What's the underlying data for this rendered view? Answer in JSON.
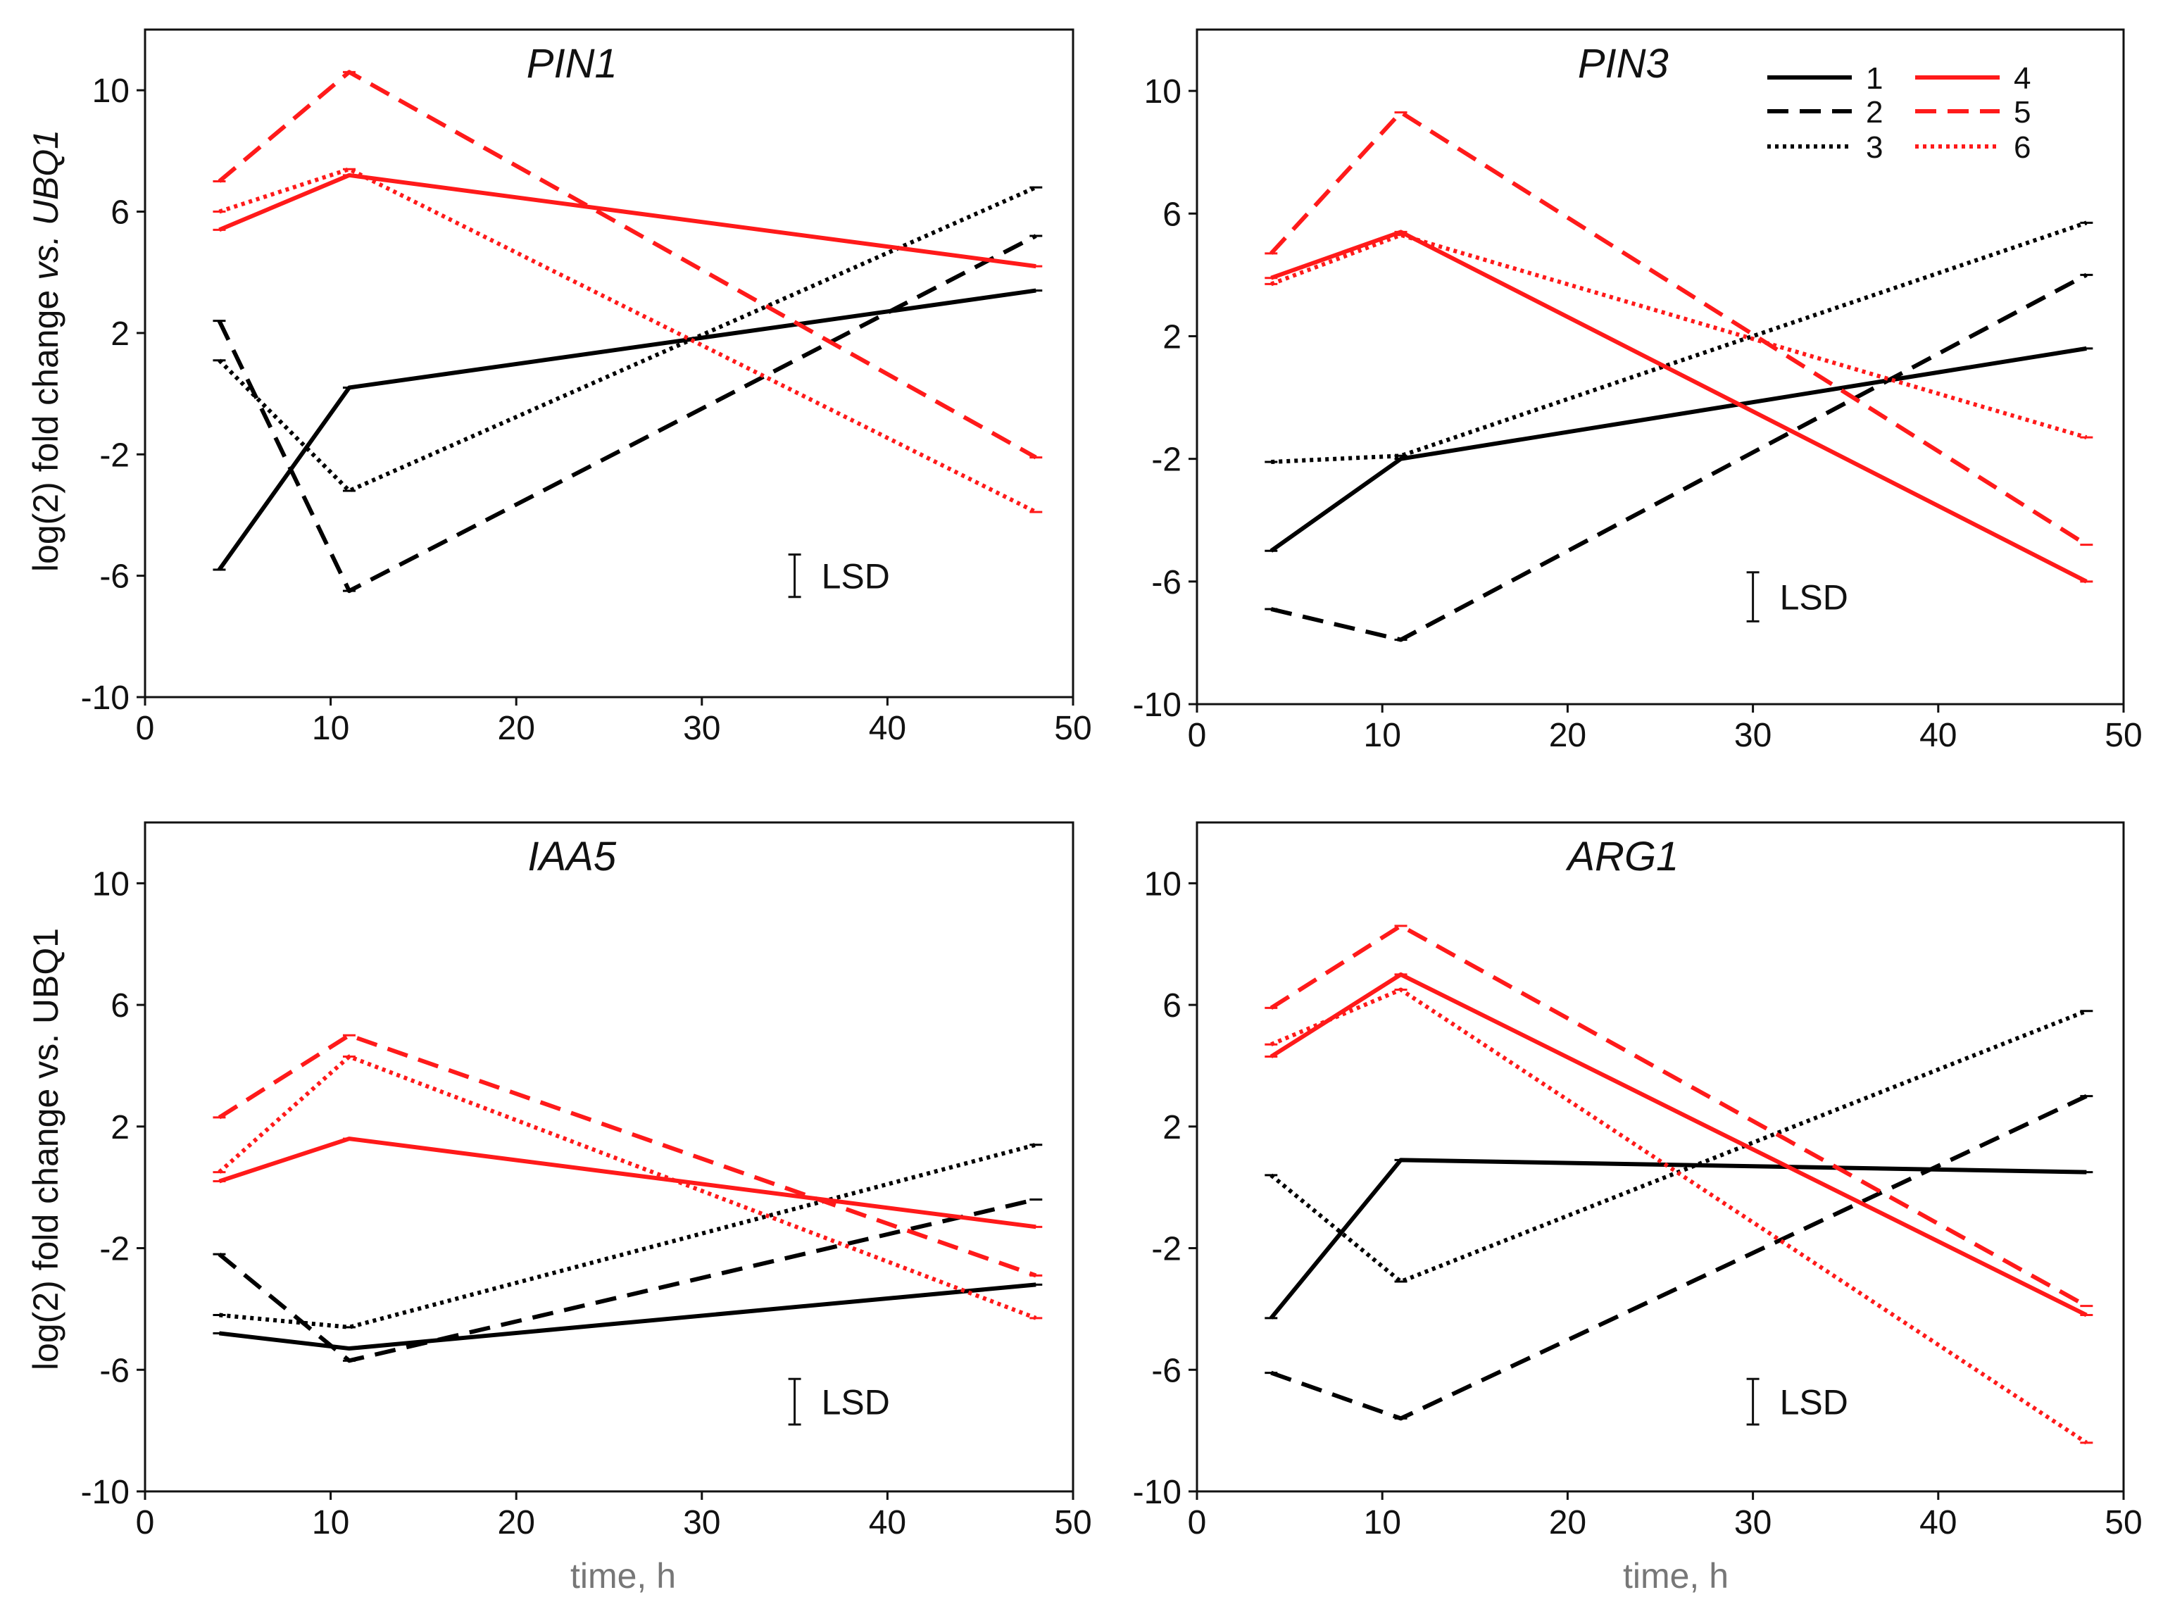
{
  "colors": {
    "control": "#000000",
    "treatment": "#ff1a1a",
    "axis": "#111111",
    "xlabel": "#777777"
  },
  "ylabel_panels": {
    "top": {
      "pre": "log(2) fold change ",
      "vs": "vs.",
      "mid": " ",
      "gene": "UBQ1"
    },
    "bottom": {
      "full": "log(2) fold change vs. UBQ1"
    }
  },
  "xlabel": "time, h",
  "lsd_label": "LSD",
  "legend": {
    "entries": [
      {
        "label": "1",
        "color": "control",
        "style": "solid"
      },
      {
        "label": "2",
        "color": "control",
        "style": "dashed"
      },
      {
        "label": "3",
        "color": "control",
        "style": "dotted"
      },
      {
        "label": "4",
        "color": "treatment",
        "style": "solid"
      },
      {
        "label": "5",
        "color": "treatment",
        "style": "dashed"
      },
      {
        "label": "6",
        "color": "treatment",
        "style": "dotted"
      }
    ]
  },
  "chart_data": [
    {
      "type": "line",
      "title": "PIN1",
      "xlabel": "",
      "ylabel": "log(2) fold change vs. UBQ1",
      "xlim": [
        0,
        50
      ],
      "ylim": [
        -10,
        12
      ],
      "xticks": [
        "0",
        "10",
        "20",
        "30",
        "40",
        "50"
      ],
      "yticks": [
        "-10",
        "-6",
        "-2",
        "2",
        "6",
        "10"
      ],
      "x": [
        4,
        11,
        48
      ],
      "series": [
        {
          "name": "1",
          "values": [
            -5.8,
            0.2,
            3.4
          ]
        },
        {
          "name": "2",
          "values": [
            2.4,
            -6.5,
            5.2
          ]
        },
        {
          "name": "3",
          "values": [
            1.1,
            -3.2,
            6.8
          ]
        },
        {
          "name": "4",
          "values": [
            5.4,
            7.2,
            4.2
          ]
        },
        {
          "name": "5",
          "values": [
            7.0,
            10.6,
            -2.1
          ]
        },
        {
          "name": "6",
          "values": [
            6.0,
            7.4,
            -3.9
          ]
        }
      ],
      "lsd": {
        "x": 35,
        "low": -6.7,
        "high": -5.3
      }
    },
    {
      "type": "line",
      "title": "PIN3",
      "xlabel": "",
      "ylabel": "",
      "xlim": [
        0,
        50
      ],
      "ylim": [
        -10,
        12
      ],
      "xticks": [
        "0",
        "10",
        "20",
        "30",
        "40",
        "50"
      ],
      "yticks": [
        "-10",
        "-6",
        "-2",
        "2",
        "6",
        "10"
      ],
      "x": [
        4,
        11,
        48
      ],
      "series": [
        {
          "name": "1",
          "values": [
            -5.0,
            -2.0,
            1.6
          ]
        },
        {
          "name": "2",
          "values": [
            -6.9,
            -7.9,
            4.0
          ]
        },
        {
          "name": "3",
          "values": [
            -2.1,
            -1.9,
            5.7
          ]
        },
        {
          "name": "4",
          "values": [
            3.9,
            5.4,
            -6.0
          ]
        },
        {
          "name": "5",
          "values": [
            4.7,
            9.3,
            -4.8
          ]
        },
        {
          "name": "6",
          "values": [
            3.7,
            5.3,
            -1.3
          ]
        }
      ],
      "lsd": {
        "x": 30,
        "low": -7.3,
        "high": -5.7
      }
    },
    {
      "type": "line",
      "title": "IAA5",
      "xlabel": "time, h",
      "ylabel": "log(2) fold change vs. UBQ1",
      "xlim": [
        0,
        50
      ],
      "ylim": [
        -10,
        12
      ],
      "xticks": [
        "0",
        "10",
        "20",
        "30",
        "40",
        "50"
      ],
      "yticks": [
        "-10",
        "-6",
        "-2",
        "2",
        "6",
        "10"
      ],
      "x": [
        4,
        11,
        48
      ],
      "series": [
        {
          "name": "1",
          "values": [
            -4.8,
            -5.3,
            -3.2
          ]
        },
        {
          "name": "2",
          "values": [
            -2.2,
            -5.7,
            -0.4
          ]
        },
        {
          "name": "3",
          "values": [
            -4.2,
            -4.6,
            1.4
          ]
        },
        {
          "name": "4",
          "values": [
            0.2,
            1.6,
            -1.3
          ]
        },
        {
          "name": "5",
          "values": [
            2.3,
            5.0,
            -2.9
          ]
        },
        {
          "name": "6",
          "values": [
            0.5,
            4.3,
            -4.3
          ]
        }
      ],
      "lsd": {
        "x": 35,
        "low": -7.8,
        "high": -6.3
      }
    },
    {
      "type": "line",
      "title": "ARG1",
      "xlabel": "time, h",
      "ylabel": "",
      "xlim": [
        0,
        50
      ],
      "ylim": [
        -10,
        12
      ],
      "xticks": [
        "0",
        "10",
        "20",
        "30",
        "40",
        "50"
      ],
      "yticks": [
        "-10",
        "-6",
        "-2",
        "2",
        "6",
        "10"
      ],
      "x": [
        4,
        11,
        48
      ],
      "series": [
        {
          "name": "1",
          "values": [
            -4.3,
            0.9,
            0.5
          ]
        },
        {
          "name": "2",
          "values": [
            -6.1,
            -7.6,
            3.0
          ]
        },
        {
          "name": "3",
          "values": [
            0.4,
            -3.1,
            5.8
          ]
        },
        {
          "name": "4",
          "values": [
            4.3,
            7.0,
            -4.2
          ]
        },
        {
          "name": "5",
          "values": [
            5.9,
            8.6,
            -3.9
          ]
        },
        {
          "name": "6",
          "values": [
            4.7,
            6.5,
            -8.4
          ]
        }
      ],
      "lsd": {
        "x": 30,
        "low": -7.8,
        "high": -6.3
      }
    }
  ]
}
